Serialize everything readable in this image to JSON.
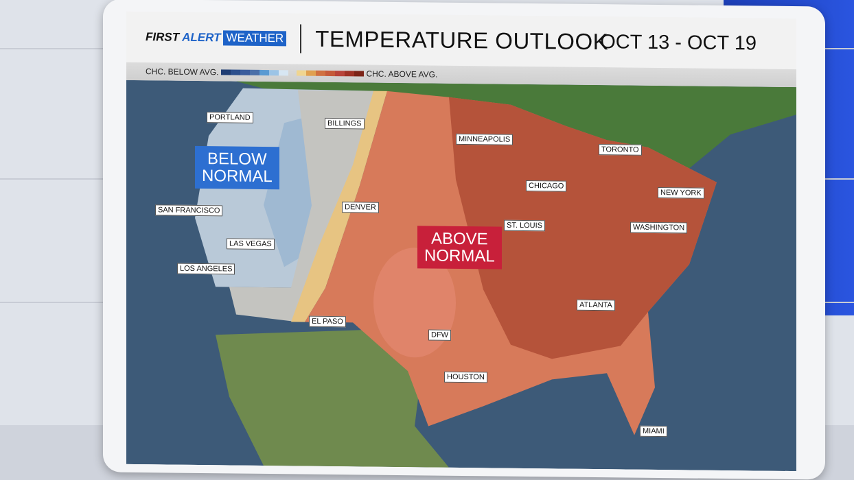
{
  "header": {
    "brand": {
      "first": "FIRST",
      "alert": "ALERT",
      "weather": "WEATHER"
    },
    "title": "TEMPERATURE OUTLOOK",
    "dates": "OCT 13 - OCT 19"
  },
  "legend": {
    "below_label": "CHC. BELOW AVG.",
    "above_label": "CHC. ABOVE AVG.",
    "below_colors": [
      "#1f3d73",
      "#2c4f8c",
      "#3a5c9c",
      "#4b6fa8",
      "#5a9ad2",
      "#9cc4e6",
      "#d7e6f3"
    ],
    "above_colors": [
      "#f0d590",
      "#e0a050",
      "#d07040",
      "#c55a3a",
      "#b8443a",
      "#9e3226",
      "#7c2418"
    ]
  },
  "regions": {
    "below_label": "BELOW\nNORMAL",
    "above_label": "ABOVE\nNORMAL",
    "below_color": "#2d6fd1",
    "above_color": "#c8203a"
  },
  "cities": [
    "PORTLAND",
    "BILLINGS",
    "MINNEAPOLIS",
    "TORONTO",
    "CHICAGO",
    "NEW YORK",
    "SAN FRANCISCO",
    "DENVER",
    "ST. LOUIS",
    "WASHINGTON",
    "LAS VEGAS",
    "LOS ANGELES",
    "ATLANTA",
    "EL PASO",
    "DFW",
    "HOUSTON",
    "MIAMI"
  ]
}
